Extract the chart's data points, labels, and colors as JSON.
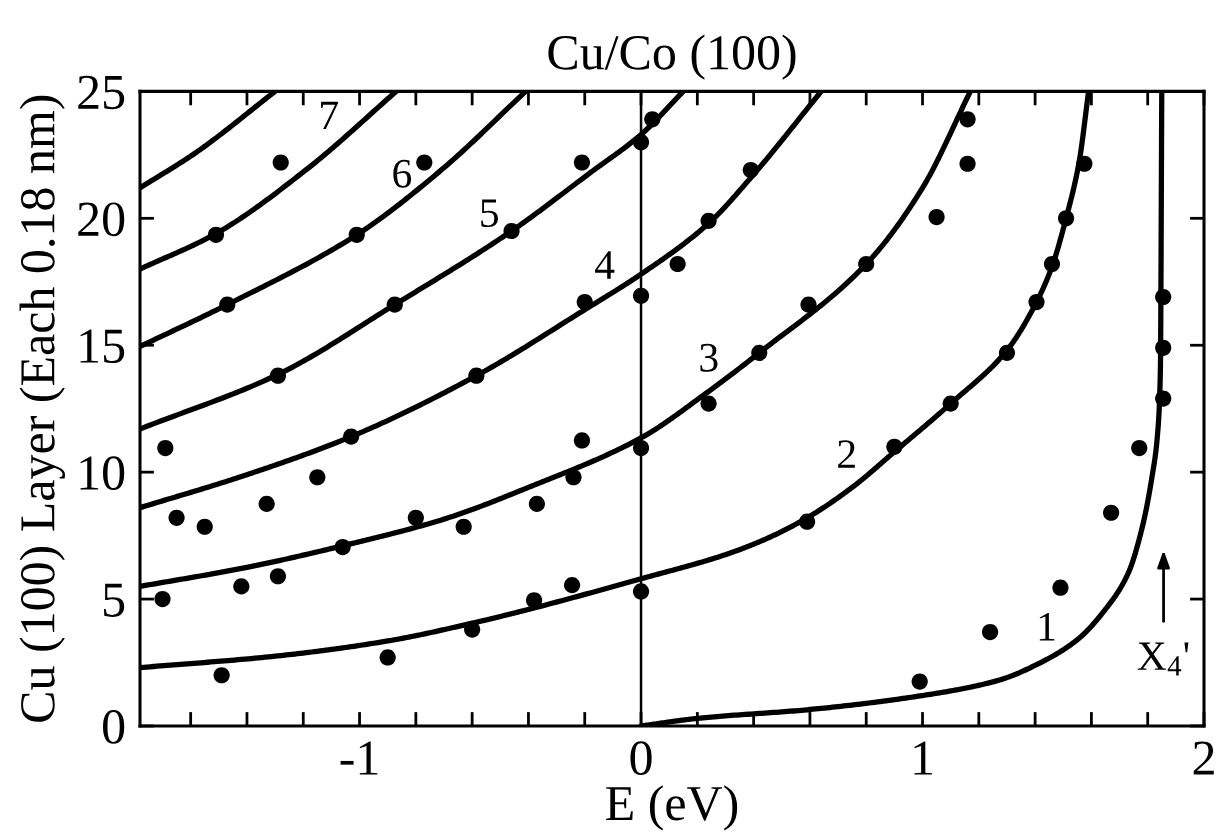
{
  "chart_data": {
    "type": "line",
    "title": "Cu/Co (100)",
    "xlabel": "E (eV)",
    "ylabel": "Cu (100) Layer (Each 0.18 nm)",
    "xlim": [
      -1.78,
      2
    ],
    "ylim": [
      0,
      25
    ],
    "xticks": [
      {
        "value": -1.6,
        "label": null
      },
      {
        "value": -1.4,
        "label": null
      },
      {
        "value": -1.2,
        "label": null
      },
      -1,
      {
        "value": -0.8,
        "label": null
      },
      {
        "value": -0.6,
        "label": null
      },
      {
        "value": -0.4,
        "label": null
      },
      {
        "value": -0.2,
        "label": null
      },
      0,
      {
        "value": 0.2,
        "label": null
      },
      {
        "value": 0.4,
        "label": null
      },
      {
        "value": 0.6,
        "label": null
      },
      {
        "value": 0.8,
        "label": null
      },
      1,
      {
        "value": 1.2,
        "label": null
      },
      {
        "value": 1.4,
        "label": null
      },
      {
        "value": 1.6,
        "label": null
      },
      {
        "value": 1.8,
        "label": null
      },
      2
    ],
    "yticks": [
      0,
      5,
      10,
      15,
      20,
      25
    ],
    "ref_lines": [
      {
        "axis": "x",
        "value": 0,
        "color": "#000000"
      }
    ],
    "annotations": [
      {
        "text": "1",
        "x": 1.49,
        "y": 3.0
      },
      {
        "text": "2",
        "x": 0.78,
        "y": 9.8
      },
      {
        "text": "3",
        "x": 0.29,
        "y": 13.6
      },
      {
        "text": "4",
        "x": -0.08,
        "y": 17.25
      },
      {
        "text": "5",
        "x": -0.49,
        "y": 19.3
      },
      {
        "text": "6",
        "x": -0.8,
        "y": 20.85
      },
      {
        "text": "7",
        "x": -1.06,
        "y": 23.15
      },
      "X$_{4}$'"
    ],
    "series": [
      {
        "color": "#000000",
        "x": [
          0,
          0.2,
          0.6,
          1.0,
          1.27,
          1.42,
          1.55,
          1.65,
          1.73,
          1.78,
          1.815,
          1.835,
          1.845,
          1.85
        ],
        "values": [
          0,
          0.3,
          0.65,
          1.2,
          1.8,
          2.5,
          3.4,
          4.6,
          6.0,
          7.8,
          9.8,
          11.5,
          14,
          25
        ]
      },
      {
        "color": "#000000",
        "x": [
          -1.78,
          -1.3,
          -0.9,
          -0.6,
          -0.38,
          0,
          0.3,
          0.45,
          0.59,
          0.75,
          0.9,
          1.1,
          1.3,
          1.405,
          1.46,
          1.51,
          1.556,
          1.59
        ],
        "values": [
          2.3,
          2.75,
          3.35,
          4.05,
          4.65,
          5.8,
          6.75,
          7.4,
          8.2,
          9.4,
          10.8,
          12.7,
          14.8,
          16.7,
          18.1,
          20.0,
          22.2,
          25
        ]
      },
      {
        "color": "#000000",
        "x": [
          -1.78,
          -1.4,
          -1.06,
          -0.7,
          -0.4,
          0,
          0.23,
          0.42,
          0.8,
          1.0,
          1.17
        ],
        "values": [
          5.5,
          6.25,
          7.1,
          8.15,
          9.4,
          11.35,
          13.1,
          14.7,
          18.2,
          21.2,
          25
        ]
      },
      {
        "color": "#000000",
        "x": [
          -1.78,
          -1.4,
          -1.03,
          -0.585,
          -0.2,
          0,
          0.24,
          0.39,
          0.64
        ],
        "values": [
          8.6,
          9.9,
          11.4,
          13.8,
          16.4,
          17.8,
          19.8,
          21.6,
          25
        ]
      },
      {
        "color": "#000000",
        "x": [
          -1.78,
          -1.29,
          -0.875,
          -0.46,
          -0.18,
          0,
          0.15
        ],
        "values": [
          11.7,
          13.85,
          16.6,
          19.5,
          21.8,
          23.3,
          25
        ]
      },
      {
        "color": "#000000",
        "x": [
          -1.78,
          -1.47,
          -1.01,
          -0.71,
          -0.41
        ],
        "values": [
          14.95,
          16.6,
          19.35,
          21.9,
          25
        ]
      },
      {
        "color": "#000000",
        "x": [
          -1.78,
          -1.51,
          -1.18,
          -0.87
        ],
        "values": [
          18.0,
          19.4,
          22.0,
          25
        ]
      },
      {
        "color": "#000000",
        "x": [
          -1.78,
          -1.58,
          -1.3
        ],
        "values": [
          21.2,
          22.6,
          25
        ]
      },
      {
        "type": "scatter",
        "color": "#000000",
        "marker": "circle",
        "x": [
          -1.28,
          -0.77,
          -0.21,
          -1.51,
          -1.01,
          -0.46,
          -1.47,
          -0.875,
          -0.2,
          -1.29,
          -0.585,
          0.04,
          0.0,
          0.39,
          0.24,
          0.13,
          0.0,
          0.8,
          0.595,
          0.42,
          0.24,
          1.16,
          1.16,
          1.05,
          1.575,
          1.51,
          1.46,
          1.405,
          1.3,
          1.1,
          1.855,
          1.855,
          1.855,
          -1.69,
          -1.65,
          -1.55,
          -1.33,
          -1.15,
          -1.03,
          -1.06,
          -0.8,
          -0.63,
          -0.37,
          -0.24,
          -0.21,
          -1.7,
          -1.42,
          -1.29,
          -1.49,
          -0.9,
          -0.6,
          -0.38,
          -0.245,
          0,
          0,
          0.59,
          0.9,
          0.99,
          1.24,
          1.49,
          1.67,
          1.77
        ],
        "values": [
          22.2,
          22.2,
          22.2,
          19.35,
          19.35,
          19.5,
          16.6,
          16.6,
          16.7,
          13.8,
          13.8,
          23.9,
          23.0,
          21.9,
          19.9,
          18.2,
          16.95,
          18.2,
          16.6,
          14.7,
          12.7,
          23.9,
          22.15,
          20.05,
          22.15,
          20.0,
          18.2,
          16.7,
          14.7,
          12.7,
          16.9,
          14.9,
          12.9,
          10.95,
          8.2,
          7.85,
          8.75,
          9.8,
          11.4,
          7.05,
          8.2,
          7.85,
          8.75,
          9.8,
          11.25,
          5.0,
          5.5,
          5.9,
          2.0,
          2.7,
          3.8,
          4.95,
          5.55,
          10.95,
          5.3,
          8.05,
          11.0,
          1.75,
          3.7,
          5.45,
          8.4,
          10.95
        ]
      }
    ]
  }
}
